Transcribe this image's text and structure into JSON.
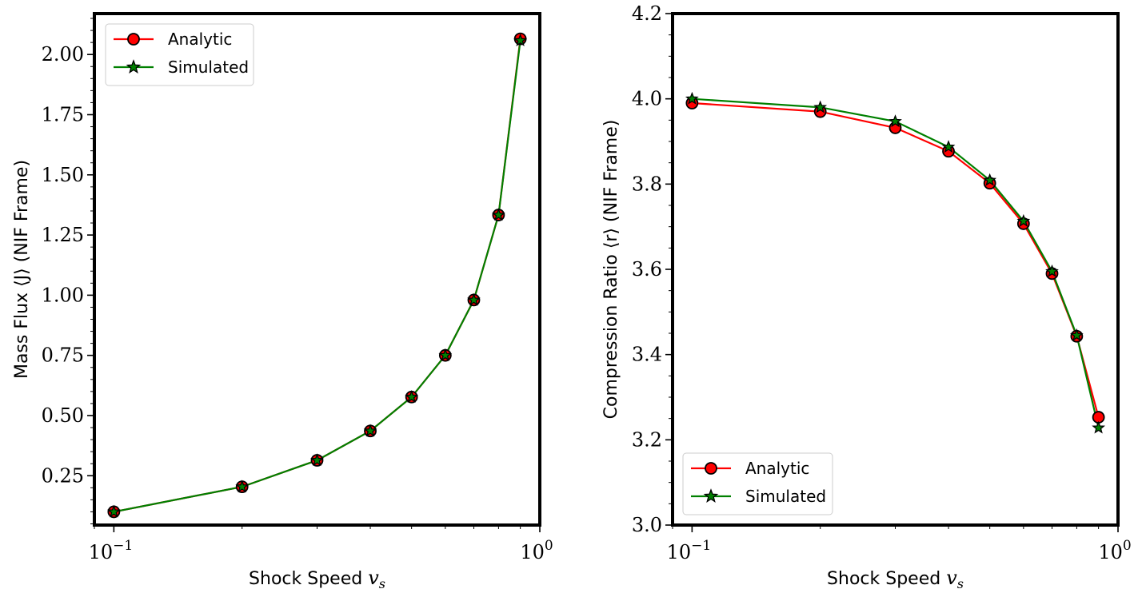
{
  "colors": {
    "analytic": "#ff0000",
    "simulated": "#008000",
    "marker_edge": "#000000"
  },
  "chart_data": [
    {
      "type": "line",
      "xscale": "log",
      "xlim": [
        0.09,
        1.0
      ],
      "ylim": [
        0.045,
        2.17
      ],
      "xlabel": "Shock Speed",
      "xlabel_math": "v",
      "xlabel_sub": "s",
      "ylabel": "Mass Flux ⟨J⟩ (NIF Frame)",
      "xticks": [
        {
          "value": 0.1,
          "base": "10",
          "exp": "−1"
        },
        {
          "value": 1.0,
          "base": "10",
          "exp": "0"
        }
      ],
      "yticks": [
        0.25,
        0.5,
        0.75,
        1.0,
        1.25,
        1.5,
        1.75,
        2.0
      ],
      "ytick_labels": [
        "0.25",
        "0.50",
        "0.75",
        "1.00",
        "1.25",
        "1.50",
        "1.75",
        "2.00"
      ],
      "yminor_step": 0.05,
      "legend_position": "upper-left",
      "x": [
        0.1,
        0.2,
        0.3,
        0.4,
        0.5,
        0.6,
        0.7,
        0.8,
        0.9
      ],
      "series": [
        {
          "name": "Analytic",
          "marker": "circle",
          "values": [
            0.1,
            0.204,
            0.314,
            0.436,
            0.577,
            0.75,
            0.98,
            1.333,
            2.065
          ]
        },
        {
          "name": "Simulated",
          "marker": "star",
          "values": [
            0.1,
            0.204,
            0.314,
            0.436,
            0.577,
            0.75,
            0.98,
            1.333,
            2.058
          ]
        }
      ]
    },
    {
      "type": "line",
      "xscale": "log",
      "xlim": [
        0.09,
        1.0
      ],
      "ylim": [
        3.0,
        4.2
      ],
      "xlabel": "Shock Speed",
      "xlabel_math": "v",
      "xlabel_sub": "s",
      "ylabel": "Compression Ratio ⟨r⟩ (NIF Frame)",
      "xticks": [
        {
          "value": 0.1,
          "base": "10",
          "exp": "−1"
        },
        {
          "value": 1.0,
          "base": "10",
          "exp": "0"
        }
      ],
      "yticks": [
        3.0,
        3.2,
        3.4,
        3.6,
        3.8,
        4.0,
        4.2
      ],
      "ytick_labels": [
        "3.0",
        "3.2",
        "3.4",
        "3.6",
        "3.8",
        "4.0",
        "4.2"
      ],
      "yminor_step": 0.05,
      "legend_position": "lower-left",
      "x": [
        0.1,
        0.2,
        0.3,
        0.4,
        0.5,
        0.6,
        0.7,
        0.8,
        0.9
      ],
      "series": [
        {
          "name": "Analytic",
          "marker": "circle",
          "values": [
            3.99,
            3.97,
            3.932,
            3.877,
            3.802,
            3.707,
            3.59,
            3.443,
            3.253
          ]
        },
        {
          "name": "Simulated",
          "marker": "star",
          "values": [
            4.0,
            3.98,
            3.947,
            3.887,
            3.809,
            3.713,
            3.595,
            3.445,
            3.228
          ]
        }
      ]
    }
  ]
}
